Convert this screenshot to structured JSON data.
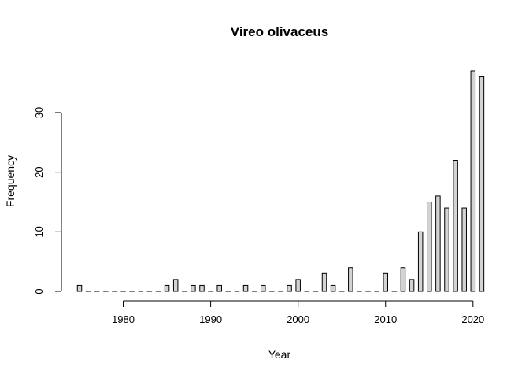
{
  "chart_data": {
    "type": "bar",
    "title": "Vireo olivaceus",
    "xlabel": "Year",
    "ylabel": "Frequency",
    "xlim": [
      1975,
      2021
    ],
    "ylim": [
      0,
      37
    ],
    "x_ticks": [
      1980,
      1990,
      2000,
      2010,
      2020
    ],
    "y_ticks": [
      0,
      10,
      20,
      30
    ],
    "bar_fill": "#d3d3d3",
    "bar_stroke": "#000000",
    "grid": false,
    "years": [
      1975,
      1976,
      1977,
      1978,
      1979,
      1980,
      1981,
      1982,
      1983,
      1984,
      1985,
      1986,
      1987,
      1988,
      1989,
      1990,
      1991,
      1992,
      1993,
      1994,
      1995,
      1996,
      1997,
      1998,
      1999,
      2000,
      2001,
      2002,
      2003,
      2004,
      2005,
      2006,
      2007,
      2008,
      2009,
      2010,
      2011,
      2012,
      2013,
      2014,
      2015,
      2016,
      2017,
      2018,
      2019,
      2020,
      2021
    ],
    "values": [
      1,
      0,
      0,
      0,
      0,
      0,
      0,
      0,
      0,
      0,
      1,
      2,
      0,
      1,
      1,
      0,
      1,
      0,
      0,
      1,
      0,
      1,
      0,
      0,
      1,
      2,
      0,
      0,
      3,
      1,
      0,
      4,
      0,
      0,
      0,
      3,
      0,
      4,
      2,
      10,
      15,
      16,
      14,
      22,
      14,
      37,
      36
    ]
  }
}
